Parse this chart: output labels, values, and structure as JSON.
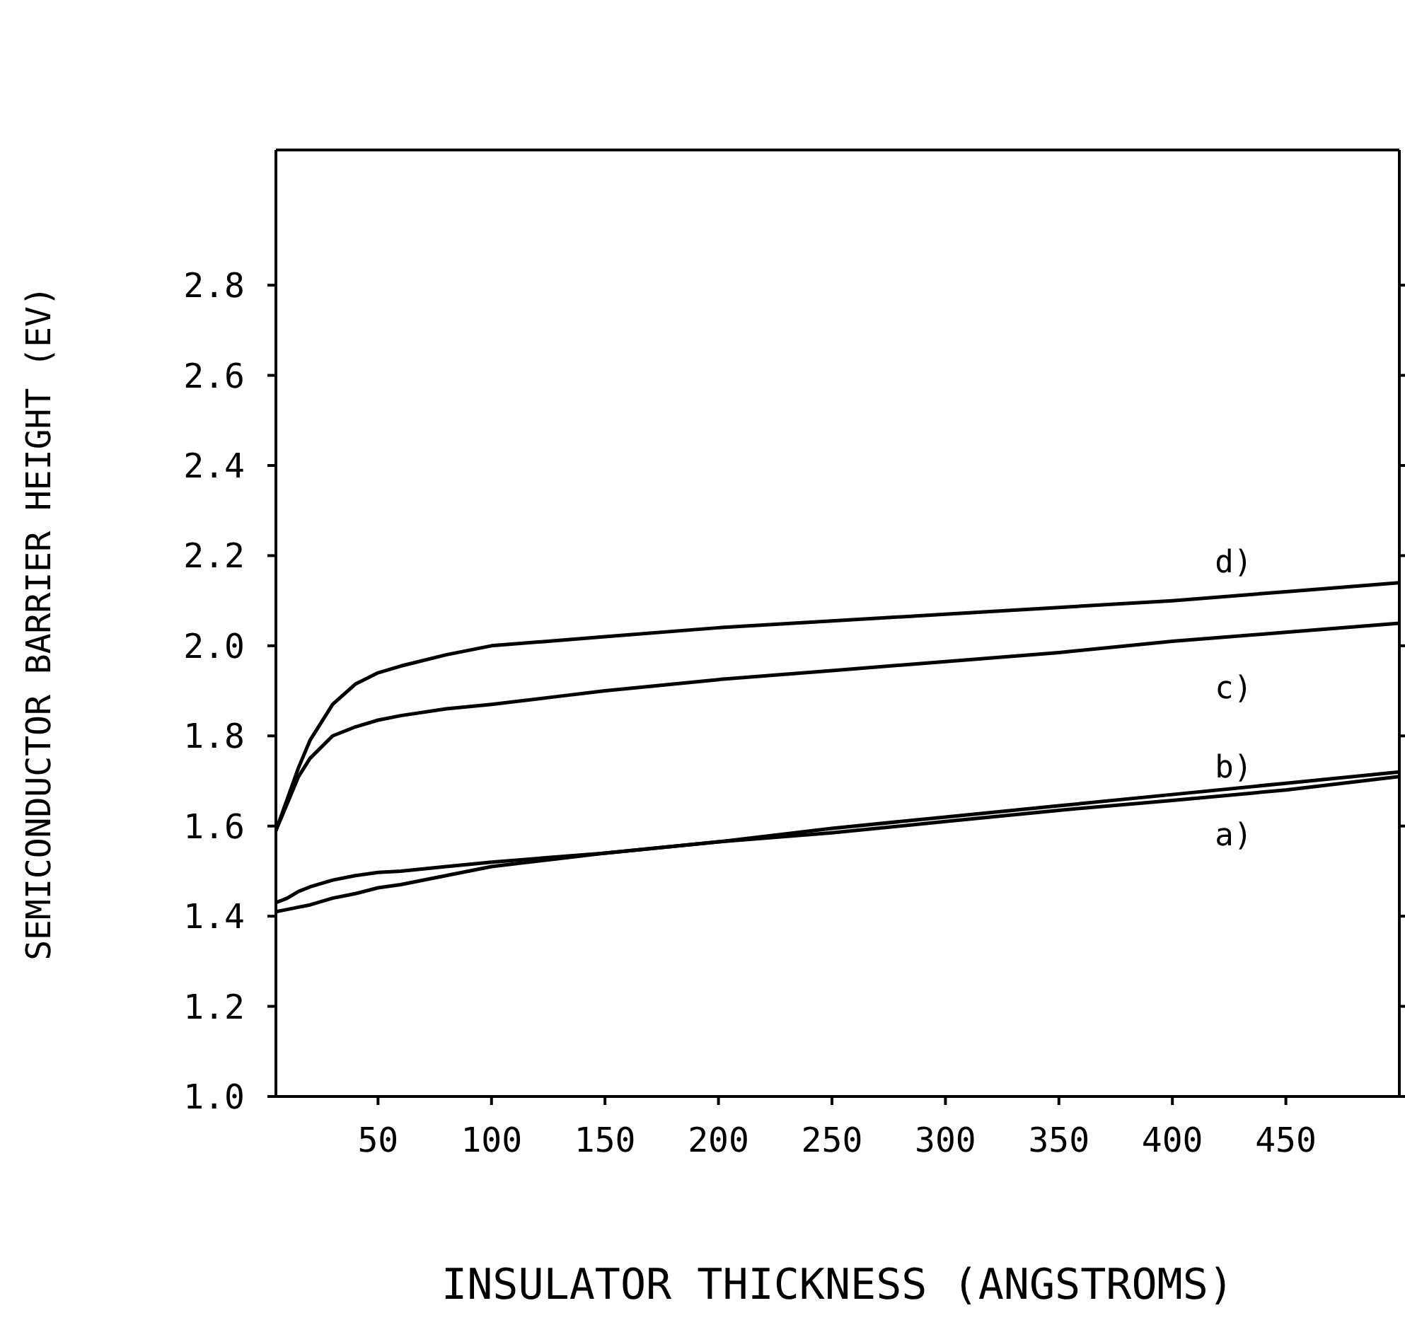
{
  "chart_data": {
    "type": "line",
    "xlabel": "INSULATOR THICKNESS (ANGSTROMS)",
    "ylabel": "SEMICONDUCTOR BARRIER HEIGHT (EV)",
    "x": [
      5,
      10,
      15,
      20,
      30,
      40,
      50,
      60,
      80,
      100,
      125,
      150,
      200,
      250,
      300,
      350,
      400,
      450,
      500
    ],
    "series": [
      {
        "name": "a)",
        "color": "#000000",
        "values": [
          1.41,
          1.415,
          1.42,
          1.425,
          1.44,
          1.45,
          1.463,
          1.47,
          1.49,
          1.51,
          1.525,
          1.54,
          1.565,
          1.585,
          1.61,
          1.635,
          1.657,
          1.68,
          1.71
        ]
      },
      {
        "name": "b)",
        "color": "#000000",
        "values": [
          1.43,
          1.44,
          1.455,
          1.465,
          1.48,
          1.49,
          1.497,
          1.5,
          1.51,
          1.52,
          1.53,
          1.54,
          1.565,
          1.595,
          1.62,
          1.645,
          1.67,
          1.695,
          1.72
        ]
      },
      {
        "name": "c)",
        "color": "#000000",
        "values": [
          1.59,
          1.65,
          1.71,
          1.75,
          1.8,
          1.82,
          1.835,
          1.845,
          1.86,
          1.87,
          1.885,
          1.9,
          1.925,
          1.945,
          1.965,
          1.985,
          2.01,
          2.03,
          2.05
        ]
      },
      {
        "name": "d)",
        "color": "#000000",
        "values": [
          1.59,
          1.66,
          1.73,
          1.79,
          1.87,
          1.915,
          1.94,
          1.955,
          1.98,
          2.0,
          2.01,
          2.02,
          2.04,
          2.055,
          2.07,
          2.085,
          2.1,
          2.12,
          2.14
        ]
      }
    ],
    "xlim": [
      5,
      500
    ],
    "xticks": [
      50,
      100,
      150,
      200,
      250,
      300,
      350,
      400,
      450
    ],
    "ylim": [
      1.0,
      3.1
    ],
    "yticks": [
      {
        "value": 1.0,
        "label": "1.0"
      },
      {
        "value": 1.2,
        "label": "1.2"
      },
      {
        "value": 1.4,
        "label": "1.4"
      },
      {
        "value": 1.6,
        "label": "1.6"
      },
      {
        "value": 1.8,
        "label": "1.8"
      },
      {
        "value": 2.0,
        "label": "2.0"
      },
      {
        "value": 2.2,
        "label": "2.2"
      },
      {
        "value": 2.4,
        "label": "2.4"
      },
      {
        "value": 2.6,
        "label": "2.6"
      },
      {
        "value": 2.8,
        "label": "2.8"
      }
    ],
    "legend": false,
    "marker": "none",
    "line_style": "solid"
  }
}
